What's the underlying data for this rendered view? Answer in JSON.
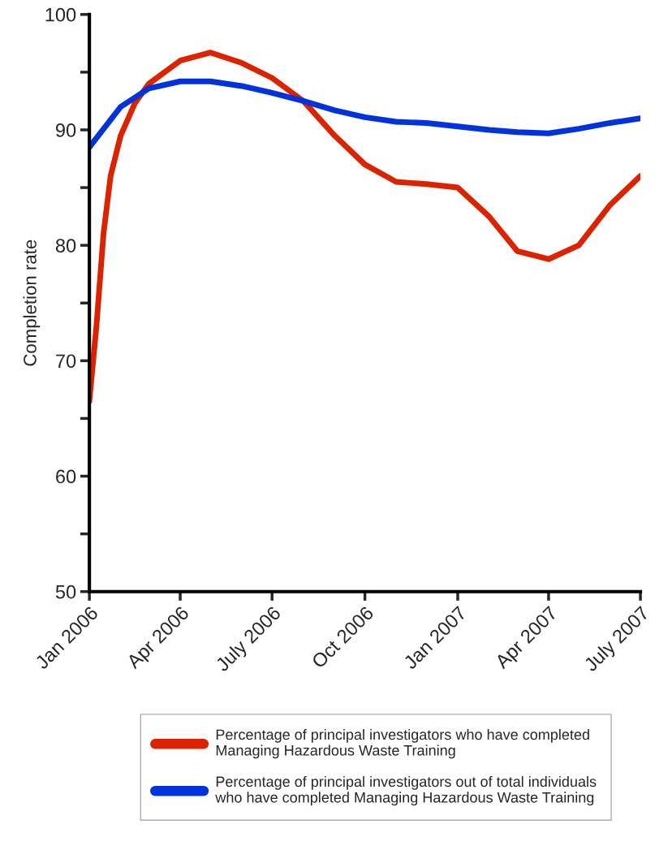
{
  "chart_data": {
    "type": "line",
    "ylabel": "Completion rate",
    "x": [
      "2006-01",
      "2006-02",
      "2006-03",
      "2006-04",
      "2006-05",
      "2006-06",
      "2006-07",
      "2006-08",
      "2006-09",
      "2006-10",
      "2006-11",
      "2006-12",
      "2007-01",
      "2007-02",
      "2007-03",
      "2007-04",
      "2007-05",
      "2007-06",
      "2007-07"
    ],
    "series": [
      {
        "name": "Percentage of principal investigators who have completed\nManaging Hazardous Waste Training",
        "color": "#dd2200",
        "x": [
          "2006-01-01",
          "2006-01-08",
          "2006-01-15",
          "2006-01-22",
          "2006-02-01",
          "2006-02-15",
          "2006-03-01",
          "2006-04",
          "2006-05",
          "2006-06",
          "2006-07",
          "2006-08",
          "2006-09",
          "2006-10",
          "2006-11",
          "2006-12",
          "2007-01",
          "2007-02",
          "2007-03",
          "2007-04",
          "2007-05",
          "2007-06",
          "2007-07"
        ],
        "values": [
          66.5,
          73,
          81,
          86,
          89.5,
          92.3,
          94,
          96,
          96.7,
          95.8,
          94.5,
          92.5,
          89.5,
          87,
          85.5,
          85.3,
          85,
          82.5,
          79.5,
          78.8,
          80,
          83.5,
          86
        ]
      },
      {
        "name": "Percentage of principal investigators out of total individuals\nwho have completed Managing Hazardous Waste Training",
        "color": "#0033dd",
        "values": [
          88.5,
          92,
          93.6,
          94.2,
          94.2,
          93.8,
          93.2,
          92.5,
          91.7,
          91.1,
          90.7,
          90.6,
          90.3,
          90,
          89.8,
          89.7,
          90.1,
          90.6,
          91
        ]
      }
    ],
    "xlim": [
      "2006-01",
      "2007-07"
    ],
    "xticks": [
      {
        "value": "2006-01",
        "label": "Jan 2006"
      },
      {
        "value": "2006-04",
        "label": "Apr 2006"
      },
      {
        "value": "2006-07",
        "label": "July 2006"
      },
      {
        "value": "2006-10",
        "label": "Oct 2006"
      },
      {
        "value": "2007-01",
        "label": "Jan 2007"
      },
      {
        "value": "2007-04",
        "label": "Apr 2007"
      },
      {
        "value": "2007-07",
        "label": "July 2007"
      }
    ],
    "ylim": [
      50,
      100
    ],
    "yticks": [
      50,
      {
        "value": 55,
        "label": null
      },
      60,
      {
        "value": 65,
        "label": null
      },
      70,
      {
        "value": 75,
        "label": null
      },
      80,
      {
        "value": 85,
        "label": null
      },
      90,
      {
        "value": 95,
        "label": null
      },
      100
    ],
    "grid": false,
    "legend": "bottom",
    "marker": "none",
    "line_style": "solid"
  }
}
